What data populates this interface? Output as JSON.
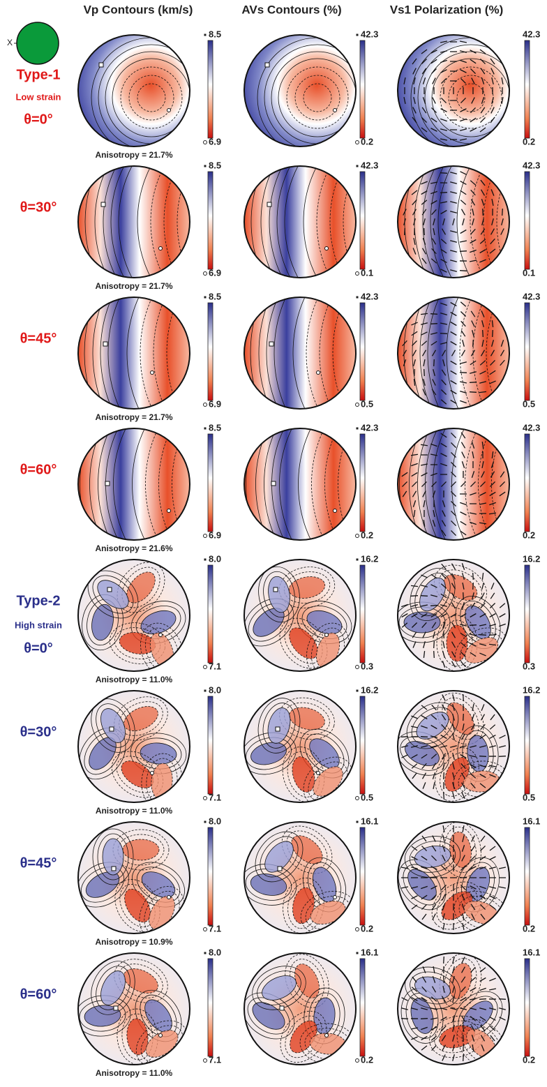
{
  "columns": [
    "Vp Contours (km/s)",
    "AVs Contours (%)",
    "Vs1 Polarization (%)"
  ],
  "axis_label": "X",
  "groups": [
    {
      "type": "Type-1",
      "strain": "Low strain"
    },
    {
      "type": "Type-2",
      "strain": "High strain"
    }
  ],
  "rows": [
    {
      "theta": "θ=0°",
      "vp": {
        "max": "8.5",
        "min": "6.9"
      },
      "avs": {
        "max": "42.3",
        "min": "0.2"
      },
      "vs1": {
        "max": "42.3",
        "min": "0.2"
      },
      "anisotropy": "Anisotropy = 21.7%"
    },
    {
      "theta": "θ=30°",
      "vp": {
        "max": "8.5",
        "min": "6.9"
      },
      "avs": {
        "max": "42.3",
        "min": "0.1"
      },
      "vs1": {
        "max": "42.3",
        "min": "0.1"
      },
      "anisotropy": "Anisotropy = 21.7%"
    },
    {
      "theta": "θ=45°",
      "vp": {
        "max": "8.5",
        "min": "6.9"
      },
      "avs": {
        "max": "42.3",
        "min": "0.5"
      },
      "vs1": {
        "max": "42.3",
        "min": "0.5"
      },
      "anisotropy": "Anisotropy = 21.7%"
    },
    {
      "theta": "θ=60°",
      "vp": {
        "max": "8.5",
        "min": "6.9"
      },
      "avs": {
        "max": "42.3",
        "min": "0.2"
      },
      "vs1": {
        "max": "42.3",
        "min": "0.2"
      },
      "anisotropy": "Anisotropy = 21.6%"
    },
    {
      "theta": "θ=0°",
      "vp": {
        "max": "8.0",
        "min": "7.1"
      },
      "avs": {
        "max": "16.2",
        "min": "0.3"
      },
      "vs1": {
        "max": "16.2",
        "min": "0.3"
      },
      "anisotropy": "Anisotropy = 11.0%"
    },
    {
      "theta": "θ=30°",
      "vp": {
        "max": "8.0",
        "min": "7.1"
      },
      "avs": {
        "max": "16.2",
        "min": "0.5"
      },
      "vs1": {
        "max": "16.2",
        "min": "0.5"
      },
      "anisotropy": "Anisotropy = 11.0%"
    },
    {
      "theta": "θ=45°",
      "vp": {
        "max": "8.0",
        "min": "7.1"
      },
      "avs": {
        "max": "16.1",
        "min": "0.2"
      },
      "vs1": {
        "max": "16.1",
        "min": "0.2"
      },
      "anisotropy": "Anisotropy = 10.9%"
    },
    {
      "theta": "θ=60°",
      "vp": {
        "max": "8.0",
        "min": "7.1"
      },
      "avs": {
        "max": "16.1",
        "min": "0.2"
      },
      "vs1": {
        "max": "16.1",
        "min": "0.2"
      },
      "anisotropy": "Anisotropy = 11.0%"
    }
  ]
}
